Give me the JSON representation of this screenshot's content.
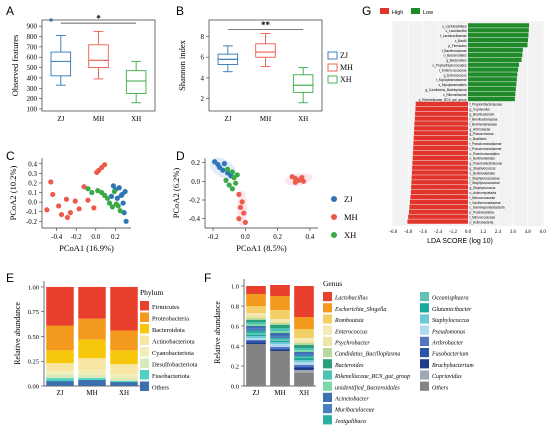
{
  "panels": {
    "A": "A",
    "B": "B",
    "C": "C",
    "D": "D",
    "E": "E",
    "F": "F",
    "G": "G"
  },
  "groups": [
    "ZJ",
    "MH",
    "XH"
  ],
  "colors": {
    "ZJ": "#2e75b6",
    "MH": "#ee5a4a",
    "XH": "#3aaa49",
    "high": "#e2342b",
    "low": "#1f8a2a"
  },
  "chart_data": [
    {
      "id": "A",
      "type": "box",
      "ylabel": "Observed features",
      "yticks": [
        100,
        200,
        300,
        400,
        500,
        600,
        700,
        800,
        900
      ],
      "ylim": [
        80,
        960
      ],
      "categories": [
        "ZJ",
        "MH",
        "XH"
      ],
      "boxes": [
        {
          "min": 330,
          "q1": 420,
          "median": 560,
          "q3": 650,
          "max": 810,
          "outliers": [
            960
          ]
        },
        {
          "min": 390,
          "q1": 500,
          "median": 570,
          "q3": 720,
          "max": 850,
          "outliers": []
        },
        {
          "min": 160,
          "q1": 250,
          "median": 370,
          "q3": 470,
          "max": 560,
          "outliers": []
        }
      ],
      "significance": {
        "from": 0,
        "to": 2,
        "label": "*",
        "y": 930
      }
    },
    {
      "id": "B",
      "type": "box",
      "ylabel": "Shannon index",
      "yticks": [
        2,
        4,
        6,
        8
      ],
      "ylim": [
        0.8,
        9.6
      ],
      "categories": [
        "ZJ",
        "MH",
        "XH"
      ],
      "boxes": [
        {
          "min": 4.6,
          "q1": 5.3,
          "median": 5.8,
          "q3": 6.3,
          "max": 7.1,
          "outliers": []
        },
        {
          "min": 5.1,
          "q1": 6.0,
          "median": 6.5,
          "q3": 7.3,
          "max": 8.3,
          "outliers": []
        },
        {
          "min": 1.6,
          "q1": 2.6,
          "median": 3.3,
          "q3": 4.3,
          "max": 5.0,
          "outliers": []
        }
      ],
      "significance": {
        "from": 0,
        "to": 2,
        "label": "**",
        "y": 8.7
      },
      "legend": [
        "ZJ",
        "MH",
        "XH"
      ]
    },
    {
      "id": "C",
      "type": "scatter",
      "xlabel": "PCoA1 (16.9%)",
      "ylabel": "PCoA2 (10.2%)",
      "xticks": [
        -0.4,
        -0.2,
        0.0,
        0.2
      ],
      "yticks": [
        -0.2,
        -0.1,
        0.0,
        0.1,
        0.2,
        0.3,
        0.4
      ],
      "xlim": [
        -0.55,
        0.36
      ],
      "ylim": [
        -0.27,
        0.46
      ],
      "series": [
        {
          "name": "ZJ",
          "points": [
            [
              0.18,
              0.17
            ],
            [
              0.2,
              0.13
            ],
            [
              0.22,
              0.04
            ],
            [
              0.26,
              0.07
            ],
            [
              0.28,
              -0.01
            ],
            [
              0.3,
              0.11
            ],
            [
              0.24,
              0.15
            ],
            [
              0.16,
              0.06
            ],
            [
              0.29,
              -0.11
            ],
            [
              0.31,
              -0.2
            ],
            [
              0.27,
              0.08
            ]
          ]
        },
        {
          "name": "MH",
          "points": [
            [
              -0.46,
              0.21
            ],
            [
              -0.44,
              0.08
            ],
            [
              -0.38,
              -0.04
            ],
            [
              -0.35,
              -0.13
            ],
            [
              -0.26,
              -0.11
            ],
            [
              -0.3,
              0.03
            ],
            [
              -0.21,
              0.01
            ],
            [
              -0.17,
              -0.07
            ],
            [
              -0.12,
              0.16
            ],
            [
              -0.08,
              0.02
            ],
            [
              -0.02,
              -0.06
            ],
            [
              0.03,
              0.33
            ],
            [
              0.06,
              0.36
            ],
            [
              0.09,
              0.39
            ],
            [
              0.01,
              0.31
            ],
            [
              -0.29,
              -0.16
            ],
            [
              -0.5,
              -0.08
            ]
          ]
        },
        {
          "name": "XH",
          "points": [
            [
              -0.08,
              0.14
            ],
            [
              -0.04,
              0.1
            ],
            [
              0.02,
              0.12
            ],
            [
              0.06,
              0.1
            ],
            [
              0.09,
              0.07
            ],
            [
              0.12,
              0.04
            ],
            [
              0.14,
              -0.01
            ],
            [
              0.17,
              -0.05
            ],
            [
              0.21,
              -0.02
            ],
            [
              0.23,
              -0.04
            ],
            [
              0.25,
              -0.09
            ],
            [
              0.19,
              0.11
            ]
          ]
        }
      ]
    },
    {
      "id": "D",
      "type": "scatter",
      "xlabel": "PCoA1 (8.5%)",
      "ylabel": "PCoA2 (6.2%)",
      "xticks": [
        -0.2,
        0.0,
        0.2,
        0.4
      ],
      "yticks": [
        -0.4,
        -0.2,
        0.0,
        0.2
      ],
      "xlim": [
        -0.25,
        0.45
      ],
      "ylim": [
        -0.5,
        0.25
      ],
      "series": [
        {
          "name": "ZJ",
          "points": [
            [
              -0.19,
              0.21
            ],
            [
              -0.17,
              0.18
            ],
            [
              -0.16,
              0.15
            ],
            [
              -0.14,
              0.12
            ],
            [
              -0.13,
              0.19
            ],
            [
              -0.11,
              0.09
            ],
            [
              -0.09,
              0.06
            ]
          ]
        },
        {
          "name": "MH",
          "points": [
            [
              0.29,
              0.05
            ],
            [
              0.31,
              0.03
            ],
            [
              0.33,
              0.01
            ],
            [
              0.35,
              0.04
            ],
            [
              0.36,
              0.0
            ],
            [
              0.31,
              -0.01
            ],
            [
              -0.04,
              -0.14
            ],
            [
              -0.02,
              -0.22
            ],
            [
              -0.03,
              -0.28
            ],
            [
              -0.01,
              -0.34
            ],
            [
              -0.04,
              -0.4
            ],
            [
              0.0,
              -0.44
            ]
          ]
        },
        {
          "name": "XH",
          "points": [
            [
              -0.11,
              0.13
            ],
            [
              -0.08,
              0.1
            ],
            [
              -0.07,
              0.04
            ],
            [
              -0.06,
              -0.02
            ],
            [
              -0.1,
              -0.04
            ],
            [
              -0.05,
              0.07
            ],
            [
              -0.12,
              0.01
            ],
            [
              -0.08,
              -0.08
            ]
          ]
        }
      ],
      "legend": [
        "ZJ",
        "MH",
        "XH"
      ]
    },
    {
      "id": "E",
      "type": "bar",
      "stacked": true,
      "ylabel": "Relative abundance",
      "yticks": [
        0.0,
        0.25,
        0.5,
        0.75,
        1.0
      ],
      "ylim": [
        0,
        1.06
      ],
      "categories": [
        "ZJ",
        "MH",
        "XH"
      ],
      "legend_title": "Phylum",
      "series": [
        {
          "name": "Firmicutes",
          "color": "#e8402d",
          "values": [
            0.39,
            0.32,
            0.44
          ]
        },
        {
          "name": "Proteobacteria",
          "color": "#f39a1e",
          "values": [
            0.25,
            0.21,
            0.2
          ]
        },
        {
          "name": "Bacteroidota",
          "color": "#f7c70c",
          "values": [
            0.13,
            0.19,
            0.14
          ]
        },
        {
          "name": "Actinobacteriota",
          "color": "#f8e7a4",
          "values": [
            0.08,
            0.12,
            0.1
          ]
        },
        {
          "name": "Cyanobacteriota",
          "color": "#f3edba",
          "values": [
            0.03,
            0.05,
            0.04
          ]
        },
        {
          "name": "Desulfobacteriota",
          "color": "#d9e9b7",
          "values": [
            0.04,
            0.03,
            0.03
          ]
        },
        {
          "name": "Fusobacteriota",
          "color": "#4fd0c1",
          "values": [
            0.03,
            0.02,
            0.01
          ]
        },
        {
          "name": "Others",
          "color": "#3b6fae",
          "values": [
            0.05,
            0.06,
            0.04
          ]
        }
      ]
    },
    {
      "id": "F",
      "type": "bar",
      "stacked": true,
      "ylabel": "Relative abundance",
      "yticks": [
        0.0,
        0.2,
        0.4,
        0.6,
        0.8,
        1.0
      ],
      "ylim": [
        0,
        1.07
      ],
      "categories": [
        "ZJ",
        "MH",
        "XH"
      ],
      "legend_title": "Genus",
      "series": [
        {
          "name": "Others",
          "color": "#838383",
          "values": [
            0.42,
            0.35,
            0.13
          ]
        },
        {
          "name": "Cupriavidus",
          "color": "#9fa8b0",
          "values": [
            0.0,
            0.0,
            0.03
          ]
        },
        {
          "name": "Brachybacterium",
          "color": "#1f3c8a",
          "values": [
            0.01,
            0.01,
            0.02
          ]
        },
        {
          "name": "Fusobacterium",
          "color": "#2d54a4",
          "values": [
            0.02,
            0.01,
            0.01
          ]
        },
        {
          "name": "Arthrobacter",
          "color": "#5276c2",
          "values": [
            0.01,
            0.02,
            0.02
          ]
        },
        {
          "name": "Pseudomonas",
          "color": "#b0d9f0",
          "values": [
            0.02,
            0.03,
            0.03
          ]
        },
        {
          "name": "Staphylococcus",
          "color": "#6ec9d6",
          "values": [
            0.02,
            0.02,
            0.02
          ]
        },
        {
          "name": "Glutamicibacter",
          "color": "#1aa79b",
          "values": [
            0.01,
            0.01,
            0.02
          ]
        },
        {
          "name": "Oceanisphaera",
          "color": "#62c2b6",
          "values": [
            0.02,
            0.02,
            0.01
          ]
        },
        {
          "name": "Jeotgalibaca",
          "color": "#2bb0a0",
          "values": [
            0.02,
            0.01,
            0.01
          ]
        },
        {
          "name": "Muribaculaceae",
          "color": "#4c7fc0",
          "values": [
            0.03,
            0.02,
            0.02
          ]
        },
        {
          "name": "Acinetobacter",
          "color": "#3e6fb0",
          "values": [
            0.02,
            0.03,
            0.02
          ]
        },
        {
          "name": "unidentified_Bacteroidales",
          "color": "#7fd6a9",
          "values": [
            0.02,
            0.02,
            0.02
          ]
        },
        {
          "name": "Rikenellaceae_RC9_gut_group",
          "color": "#4cc2b5",
          "values": [
            0.02,
            0.03,
            0.02
          ]
        },
        {
          "name": "Bacteroides",
          "color": "#2a9d7a",
          "values": [
            0.02,
            0.03,
            0.03
          ]
        },
        {
          "name": "Candidatus_Bacilloplasma",
          "color": "#b9d99c",
          "values": [
            0.02,
            0.02,
            0.02
          ]
        },
        {
          "name": "Psychrobacter",
          "color": "#f0e4a6",
          "values": [
            0.03,
            0.02,
            0.02
          ]
        },
        {
          "name": "Enterococcus",
          "color": "#f6e7b9",
          "values": [
            0.02,
            0.02,
            0.03
          ]
        },
        {
          "name": "Romboutsia",
          "color": "#f4cf68",
          "values": [
            0.07,
            0.09,
            0.09
          ]
        },
        {
          "name": "Escherichia_Shigella",
          "color": "#f39a1e",
          "values": [
            0.12,
            0.14,
            0.12
          ]
        },
        {
          "name": "Lactobacillus",
          "color": "#e8402d",
          "values": [
            0.08,
            0.11,
            0.31
          ]
        }
      ],
      "legend_order": [
        "Lactobacillus",
        "Escherichia_Shigella",
        "Romboutsia",
        "Enterococcus",
        "Psychrobacter",
        "Candidatus_Bacilloplasma",
        "Bacteroides",
        "Rikenellaceae_RC9_gut_group",
        "unidentified_Bacteroidales",
        "Acinetobacter",
        "Muribaculaceae",
        "Jeotgalibaca",
        "Oceanisphaera",
        "Glutamicibacter",
        "Staphylococcus",
        "Pseudomonas",
        "Arthrobacter",
        "Fusobacterium",
        "Brachybacterium",
        "Cupriavidus",
        "Others"
      ]
    },
    {
      "id": "G",
      "type": "bar",
      "orientation": "horizontal",
      "xlabel": "LDA SCORE (log 10)",
      "xticks": [
        -6.0,
        -4.8,
        -3.6,
        -2.4,
        -1.2,
        0.0,
        1.2,
        2.4,
        3.6,
        4.8,
        6.0
      ],
      "xlim": [
        -6.1,
        6.1
      ],
      "legend": [
        "High",
        "Low"
      ],
      "low": [
        {
          "label": "o_Lactobacillales",
          "value": 4.9
        },
        {
          "label": "c_Lactobacillia",
          "value": 4.88
        },
        {
          "label": "f_Lactobacillaceae",
          "value": 4.85
        },
        {
          "label": "c_Bacilli",
          "value": 4.82
        },
        {
          "label": "p_Firmicutes",
          "value": 4.78
        },
        {
          "label": "f_Bacteroidaceae",
          "value": 4.4
        },
        {
          "label": "o_Bacteroidales",
          "value": 4.36
        },
        {
          "label": "g_Bacteroides",
          "value": 4.3
        },
        {
          "label": "o_Peptostreptococcales",
          "value": 4.1
        },
        {
          "label": "f_Enterococcaceae",
          "value": 4.02
        },
        {
          "label": "g_Enterococcus",
          "value": 3.96
        },
        {
          "label": "f_Mycoplasmataceae",
          "value": 3.92
        },
        {
          "label": "o_Mycoplasmatales",
          "value": 3.88
        },
        {
          "label": "g_Candidatus_Bacilloplasma",
          "value": 3.84
        },
        {
          "label": "c_Rikenellaceae",
          "value": 3.8
        },
        {
          "label": "g_Rikenellaceae_RC9_gut_group",
          "value": 3.76
        }
      ],
      "high": [
        {
          "label": "f_Propionibacteriaceae",
          "value": -4.2
        },
        {
          "label": "g_Cupriavidus",
          "value": -4.22
        },
        {
          "label": "g_Brevibacterium",
          "value": -4.25
        },
        {
          "label": "f_Brevibacteriaceae",
          "value": -4.27
        },
        {
          "label": "f_Burkholderiaceae",
          "value": -4.3
        },
        {
          "label": "g_Arthrobacter",
          "value": -4.32
        },
        {
          "label": "g_Pseudomonas",
          "value": -4.34
        },
        {
          "label": "o_Bacillales",
          "value": -4.36
        },
        {
          "label": "f_Pseudomonadaceae",
          "value": -4.38
        },
        {
          "label": "f_Pseudomonadaceae",
          "value": -4.4
        },
        {
          "label": "o_Pseudomonadales",
          "value": -4.42
        },
        {
          "label": "o_Burkholderiales",
          "value": -4.44
        },
        {
          "label": "g_Pseudobacteriaceae",
          "value": -4.46
        },
        {
          "label": "g_Staphylococcus",
          "value": -4.48
        },
        {
          "label": "o_Burkholderiales",
          "value": -4.5
        },
        {
          "label": "f_Staphylococcaceae",
          "value": -4.52
        },
        {
          "label": "f_Staphylococcaceae",
          "value": -4.54
        },
        {
          "label": "g_Staphylococcus",
          "value": -4.56
        },
        {
          "label": "o_Actinomycetales",
          "value": -4.58
        },
        {
          "label": "f_Micrococcaceae",
          "value": -4.62
        },
        {
          "label": "f_Xanthomonadaceae",
          "value": -4.66
        },
        {
          "label": "c_Gammaproteobacteria",
          "value": -4.7
        },
        {
          "label": "p_Proteobacteria",
          "value": -4.74
        },
        {
          "label": "f_Micrococcaceae",
          "value": -4.8
        },
        {
          "label": "o_Actinobacteria",
          "value": -4.86
        }
      ]
    }
  ]
}
